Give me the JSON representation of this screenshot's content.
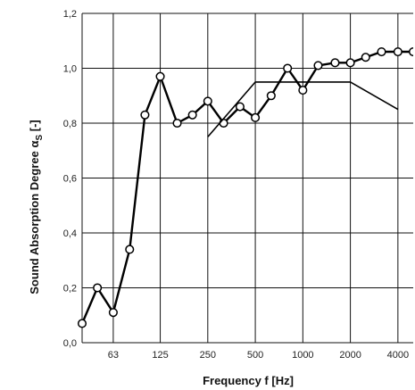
{
  "chart_data": {
    "type": "line",
    "xlabel": "Frequency f [Hz]",
    "ylabel_main": "Sound Absorption Degree α",
    "ylabel_sub": "S",
    "ylabel_tail": " [-]",
    "ylim": [
      0,
      1.2
    ],
    "x_scale": "log",
    "xlim": [
      40,
      5000
    ],
    "grid": true,
    "y_ticks": [
      "0,0",
      "0,2",
      "0,4",
      "0,6",
      "0,8",
      "1,0",
      "1,2"
    ],
    "y_tick_values": [
      0,
      0.2,
      0.4,
      0.6,
      0.8,
      1.0,
      1.2
    ],
    "x_ticks": [
      "63",
      "125",
      "250",
      "500",
      "1000",
      "2000",
      "4000"
    ],
    "x_tick_values": [
      63,
      125,
      250,
      500,
      1000,
      2000,
      4000
    ],
    "series": [
      {
        "key": "measured",
        "markers": true,
        "x": [
          40,
          50,
          63,
          80,
          100,
          125,
          160,
          200,
          250,
          315,
          400,
          500,
          630,
          800,
          1000,
          1250,
          1600,
          2000,
          2500,
          3150,
          4000,
          5000
        ],
        "values": [
          0.07,
          0.2,
          0.11,
          0.34,
          0.83,
          0.97,
          0.8,
          0.83,
          0.88,
          0.8,
          0.86,
          0.82,
          0.9,
          1.0,
          0.92,
          1.01,
          1.02,
          1.02,
          1.04,
          1.06,
          1.06,
          1.06
        ]
      },
      {
        "key": "reference",
        "markers": false,
        "x": [
          250,
          500,
          2000,
          4000
        ],
        "values": [
          0.75,
          0.95,
          0.95,
          0.85
        ]
      }
    ]
  }
}
